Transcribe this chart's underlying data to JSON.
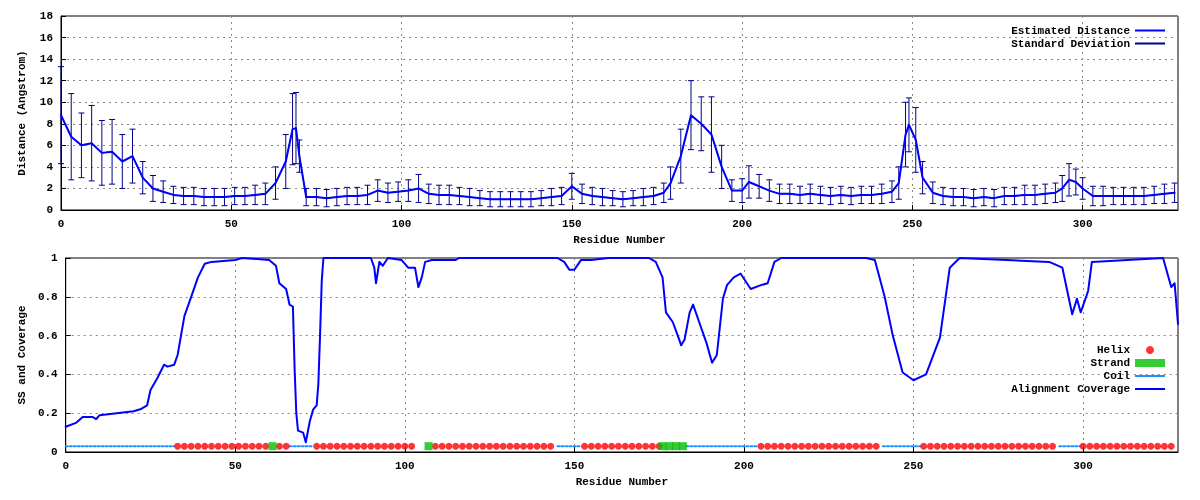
{
  "chart_data": [
    {
      "type": "line",
      "xlabel": "Residue Number",
      "ylabel": "Distance (Angstrom)",
      "xlim": [
        0,
        328
      ],
      "xticks": [
        0,
        50,
        100,
        150,
        200,
        250,
        300
      ],
      "ylim": [
        0,
        18
      ],
      "yticks": [
        0,
        2,
        4,
        6,
        8,
        10,
        12,
        14,
        16,
        18
      ],
      "grid": true,
      "legend": "top right",
      "marker": "none",
      "line_style": "solid",
      "x": [
        0,
        3,
        6,
        9,
        12,
        15,
        18,
        21,
        24,
        27,
        30,
        33,
        36,
        39,
        42,
        45,
        48,
        51,
        54,
        57,
        60,
        63,
        66,
        68,
        69,
        70,
        72,
        75,
        78,
        81,
        84,
        87,
        90,
        93,
        96,
        99,
        102,
        105,
        108,
        111,
        114,
        117,
        120,
        123,
        126,
        129,
        132,
        135,
        138,
        141,
        144,
        147,
        150,
        153,
        156,
        159,
        162,
        165,
        168,
        171,
        174,
        177,
        179,
        182,
        185,
        188,
        191,
        194,
        197,
        200,
        202,
        205,
        208,
        211,
        214,
        217,
        220,
        223,
        226,
        229,
        232,
        235,
        238,
        241,
        244,
        246,
        248,
        249,
        251,
        253,
        256,
        259,
        262,
        265,
        268,
        271,
        274,
        277,
        280,
        283,
        286,
        289,
        292,
        294,
        296,
        298,
        300,
        303,
        306,
        309,
        312,
        315,
        318,
        321,
        324,
        327
      ],
      "series": [
        {
          "name": "Estimated Distance",
          "color": "#0000ff",
          "values": [
            8.8,
            6.8,
            6.0,
            6.2,
            5.3,
            5.4,
            4.5,
            5.0,
            3.0,
            2.0,
            1.7,
            1.4,
            1.3,
            1.3,
            1.2,
            1.2,
            1.2,
            1.3,
            1.3,
            1.4,
            1.5,
            2.5,
            4.5,
            7.5,
            7.6,
            5.0,
            1.2,
            1.2,
            1.1,
            1.2,
            1.3,
            1.3,
            1.4,
            1.8,
            1.6,
            1.7,
            1.8,
            2.0,
            1.5,
            1.4,
            1.4,
            1.3,
            1.2,
            1.1,
            1.0,
            1.0,
            1.0,
            1.0,
            1.0,
            1.1,
            1.2,
            1.3,
            2.2,
            1.5,
            1.3,
            1.2,
            1.1,
            1.0,
            1.1,
            1.2,
            1.3,
            1.6,
            2.5,
            5.0,
            8.8,
            8.0,
            7.0,
            4.0,
            1.8,
            1.8,
            2.6,
            2.2,
            1.8,
            1.5,
            1.5,
            1.4,
            1.5,
            1.4,
            1.3,
            1.4,
            1.3,
            1.4,
            1.4,
            1.5,
            1.7,
            2.5,
            7.0,
            7.9,
            6.5,
            3.0,
            1.6,
            1.3,
            1.2,
            1.2,
            1.1,
            1.2,
            1.1,
            1.3,
            1.3,
            1.4,
            1.4,
            1.5,
            1.6,
            2.0,
            2.8,
            2.6,
            2.0,
            1.3,
            1.3,
            1.3,
            1.3,
            1.3,
            1.3,
            1.4,
            1.5,
            1.6
          ]
        },
        {
          "name": "Standard Deviation",
          "color": "#00008b",
          "values": [
            8.8,
            6.8,
            6.0,
            6.2,
            5.3,
            5.4,
            4.5,
            5.0,
            3.0,
            2.0,
            1.7,
            1.4,
            1.3,
            1.3,
            1.2,
            1.2,
            1.2,
            1.3,
            1.3,
            1.4,
            1.5,
            2.5,
            4.5,
            7.5,
            7.6,
            5.0,
            1.2,
            1.2,
            1.1,
            1.2,
            1.3,
            1.3,
            1.4,
            1.8,
            1.6,
            1.7,
            1.8,
            2.0,
            1.5,
            1.4,
            1.4,
            1.3,
            1.2,
            1.1,
            1.0,
            1.0,
            1.0,
            1.0,
            1.0,
            1.1,
            1.2,
            1.3,
            2.2,
            1.5,
            1.3,
            1.2,
            1.1,
            1.0,
            1.1,
            1.2,
            1.3,
            1.6,
            2.5,
            5.0,
            8.8,
            8.0,
            7.0,
            4.0,
            1.8,
            1.8,
            2.6,
            2.2,
            1.8,
            1.5,
            1.5,
            1.4,
            1.5,
            1.4,
            1.3,
            1.4,
            1.3,
            1.4,
            1.4,
            1.5,
            1.7,
            2.5,
            7.0,
            7.9,
            6.5,
            3.0,
            1.6,
            1.3,
            1.2,
            1.2,
            1.1,
            1.2,
            1.1,
            1.3,
            1.3,
            1.4,
            1.4,
            1.5,
            1.6,
            2.0,
            2.8,
            2.6,
            2.0,
            1.3,
            1.3,
            1.3,
            1.3,
            1.3,
            1.3,
            1.4,
            1.5,
            1.6
          ],
          "errors": [
            4.5,
            4.0,
            3.0,
            3.5,
            3.0,
            3.0,
            2.5,
            2.5,
            1.5,
            1.2,
            1.0,
            0.8,
            0.8,
            0.8,
            0.8,
            0.8,
            0.8,
            0.8,
            0.8,
            0.9,
            1.0,
            1.5,
            2.5,
            3.3,
            3.3,
            1.5,
            0.8,
            0.8,
            0.8,
            0.8,
            0.8,
            0.8,
            0.9,
            1.0,
            0.9,
            0.9,
            1.0,
            1.3,
            0.9,
            0.9,
            0.9,
            0.8,
            0.8,
            0.7,
            0.7,
            0.7,
            0.7,
            0.7,
            0.7,
            0.7,
            0.8,
            0.8,
            1.2,
            0.9,
            0.8,
            0.8,
            0.7,
            0.7,
            0.7,
            0.8,
            0.8,
            0.9,
            1.5,
            2.5,
            3.2,
            2.5,
            3.5,
            2.0,
            1.0,
            1.1,
            1.5,
            1.1,
            1.0,
            0.9,
            0.9,
            0.8,
            0.9,
            0.8,
            0.8,
            0.8,
            0.8,
            0.8,
            0.8,
            0.9,
            1.0,
            1.5,
            3.0,
            2.5,
            3.0,
            1.5,
            1.0,
            0.8,
            0.8,
            0.8,
            0.8,
            0.8,
            0.8,
            0.8,
            0.8,
            0.9,
            0.9,
            0.9,
            0.9,
            1.2,
            1.5,
            1.2,
            1.0,
            0.9,
            0.9,
            0.8,
            0.8,
            0.8,
            0.8,
            0.8,
            0.9,
            0.9
          ]
        }
      ]
    },
    {
      "type": "line",
      "xlabel": "Residue Number",
      "ylabel": "SS and Coverage",
      "xlim": [
        0,
        328
      ],
      "xticks": [
        0,
        50,
        100,
        150,
        200,
        250,
        300
      ],
      "ylim": [
        0,
        1
      ],
      "yticks": [
        0,
        0.2,
        0.4,
        0.6,
        0.8,
        1
      ],
      "grid": true,
      "legend": "right",
      "series": [
        {
          "name": "Helix",
          "type": "scatter",
          "marker": "circle",
          "color": "#ff0000",
          "x": [
            33,
            35,
            37,
            39,
            41,
            43,
            45,
            47,
            49,
            51,
            53,
            55,
            57,
            59,
            63,
            65,
            74,
            76,
            78,
            80,
            82,
            84,
            86,
            88,
            90,
            92,
            94,
            96,
            98,
            100,
            102,
            109,
            111,
            113,
            115,
            117,
            119,
            121,
            123,
            125,
            127,
            129,
            131,
            133,
            135,
            137,
            139,
            141,
            143,
            153,
            155,
            157,
            159,
            161,
            163,
            165,
            167,
            169,
            171,
            173,
            175,
            205,
            207,
            209,
            211,
            213,
            215,
            217,
            219,
            221,
            223,
            225,
            227,
            229,
            231,
            233,
            235,
            237,
            239,
            253,
            255,
            257,
            259,
            261,
            263,
            265,
            267,
            269,
            271,
            273,
            275,
            277,
            279,
            281,
            283,
            285,
            287,
            289,
            291,
            300,
            302,
            304,
            306,
            308,
            310,
            312,
            314,
            316,
            318,
            320,
            322,
            324,
            326
          ],
          "values": [
            0.03,
            0.03,
            0.03,
            0.03,
            0.03,
            0.03,
            0.03,
            0.03,
            0.03,
            0.03,
            0.03,
            0.03,
            0.03,
            0.03,
            0.03,
            0.03,
            0.03,
            0.03,
            0.03,
            0.03,
            0.03,
            0.03,
            0.03,
            0.03,
            0.03,
            0.03,
            0.03,
            0.03,
            0.03,
            0.03,
            0.03,
            0.03,
            0.03,
            0.03,
            0.03,
            0.03,
            0.03,
            0.03,
            0.03,
            0.03,
            0.03,
            0.03,
            0.03,
            0.03,
            0.03,
            0.03,
            0.03,
            0.03,
            0.03,
            0.03,
            0.03,
            0.03,
            0.03,
            0.03,
            0.03,
            0.03,
            0.03,
            0.03,
            0.03,
            0.03,
            0.03,
            0.03,
            0.03,
            0.03,
            0.03,
            0.03,
            0.03,
            0.03,
            0.03,
            0.03,
            0.03,
            0.03,
            0.03,
            0.03,
            0.03,
            0.03,
            0.03,
            0.03,
            0.03,
            0.03,
            0.03,
            0.03,
            0.03,
            0.03,
            0.03,
            0.03,
            0.03,
            0.03,
            0.03,
            0.03,
            0.03,
            0.03,
            0.03,
            0.03,
            0.03,
            0.03,
            0.03,
            0.03,
            0.03,
            0.03,
            0.03,
            0.03,
            0.03,
            0.03,
            0.03,
            0.03,
            0.03,
            0.03,
            0.03,
            0.03,
            0.03,
            0.03,
            0.03
          ]
        },
        {
          "name": "Strand",
          "type": "scatter",
          "marker": "square",
          "color": "#00c000",
          "x": [
            61,
            107,
            176,
            178,
            180,
            182
          ],
          "values": [
            0.03,
            0.03,
            0.03,
            0.03,
            0.03,
            0.03
          ]
        },
        {
          "name": "Coil",
          "type": "line",
          "marker": "none",
          "line_style": "dotted",
          "color": "#1e90ff",
          "x": [
            0,
            32,
            33,
            66,
            73,
            74,
            145,
            152,
            153,
            183,
            204,
            205,
            241,
            252,
            253,
            293,
            299
          ],
          "values": [
            0.03,
            0.03,
            null,
            0.03,
            0.03,
            null,
            0.03,
            0.03,
            null,
            0.03,
            0.03,
            null,
            0.03,
            0.03,
            null,
            0.03,
            0.03
          ]
        },
        {
          "name": "Alignment Coverage",
          "marker": "none",
          "line_style": "solid",
          "color": "#0000ff",
          "x": [
            0,
            3,
            5,
            8,
            9,
            10,
            15,
            20,
            22,
            24,
            25,
            27,
            29,
            30,
            32,
            33,
            35,
            37,
            39,
            41,
            43,
            50,
            52,
            60,
            62,
            63,
            65,
            66,
            67,
            67.5,
            68,
            68.5,
            70,
            70.8,
            72,
            73,
            74,
            74.5,
            75,
            75.5,
            76,
            90,
            91,
            91.5,
            92.5,
            93.5,
            95,
            99,
            101,
            103,
            104,
            105,
            106,
            108,
            115,
            116,
            145,
            147,
            148.5,
            150,
            152,
            155,
            160,
            172,
            174,
            176,
            177,
            179,
            180.5,
            181.5,
            182.5,
            184,
            185,
            187,
            189,
            190.6,
            192,
            193.8,
            195,
            197,
            199,
            202,
            205,
            207,
            209,
            211,
            236,
            238.6,
            241.5,
            243.9,
            246.8,
            250,
            253.7,
            257.8,
            260.7,
            263.6,
            290,
            293.9,
            296.8,
            298.2,
            299.3,
            301.5,
            302.6,
            323.6,
            326,
            327,
            328
          ],
          "values": [
            0.13,
            0.15,
            0.18,
            0.18,
            0.17,
            0.19,
            0.2,
            0.21,
            0.22,
            0.24,
            0.32,
            0.38,
            0.45,
            0.44,
            0.45,
            0.5,
            0.7,
            0.8,
            0.9,
            0.97,
            0.98,
            0.99,
            1,
            0.99,
            0.96,
            0.87,
            0.84,
            0.76,
            0.75,
            0.43,
            0.2,
            0.11,
            0.1,
            0.05,
            0.16,
            0.22,
            0.24,
            0.35,
            0.6,
            0.88,
            1,
            1,
            0.95,
            0.87,
            0.98,
            0.96,
            1,
            0.99,
            0.95,
            0.95,
            0.85,
            0.9,
            0.98,
            0.99,
            0.99,
            1,
            1,
            0.98,
            0.94,
            0.94,
            0.99,
            0.99,
            1,
            1,
            0.98,
            0.9,
            0.72,
            0.67,
            0.6,
            0.55,
            0.58,
            0.72,
            0.76,
            0.66,
            0.56,
            0.46,
            0.5,
            0.79,
            0.86,
            0.9,
            0.92,
            0.84,
            0.86,
            0.87,
            0.98,
            1,
            1,
            0.99,
            0.8,
            0.6,
            0.41,
            0.37,
            0.4,
            0.59,
            0.95,
            1,
            0.98,
            0.95,
            0.71,
            0.79,
            0.72,
            0.83,
            0.98,
            1,
            0.85,
            0.87,
            0.66
          ]
        }
      ]
    }
  ]
}
